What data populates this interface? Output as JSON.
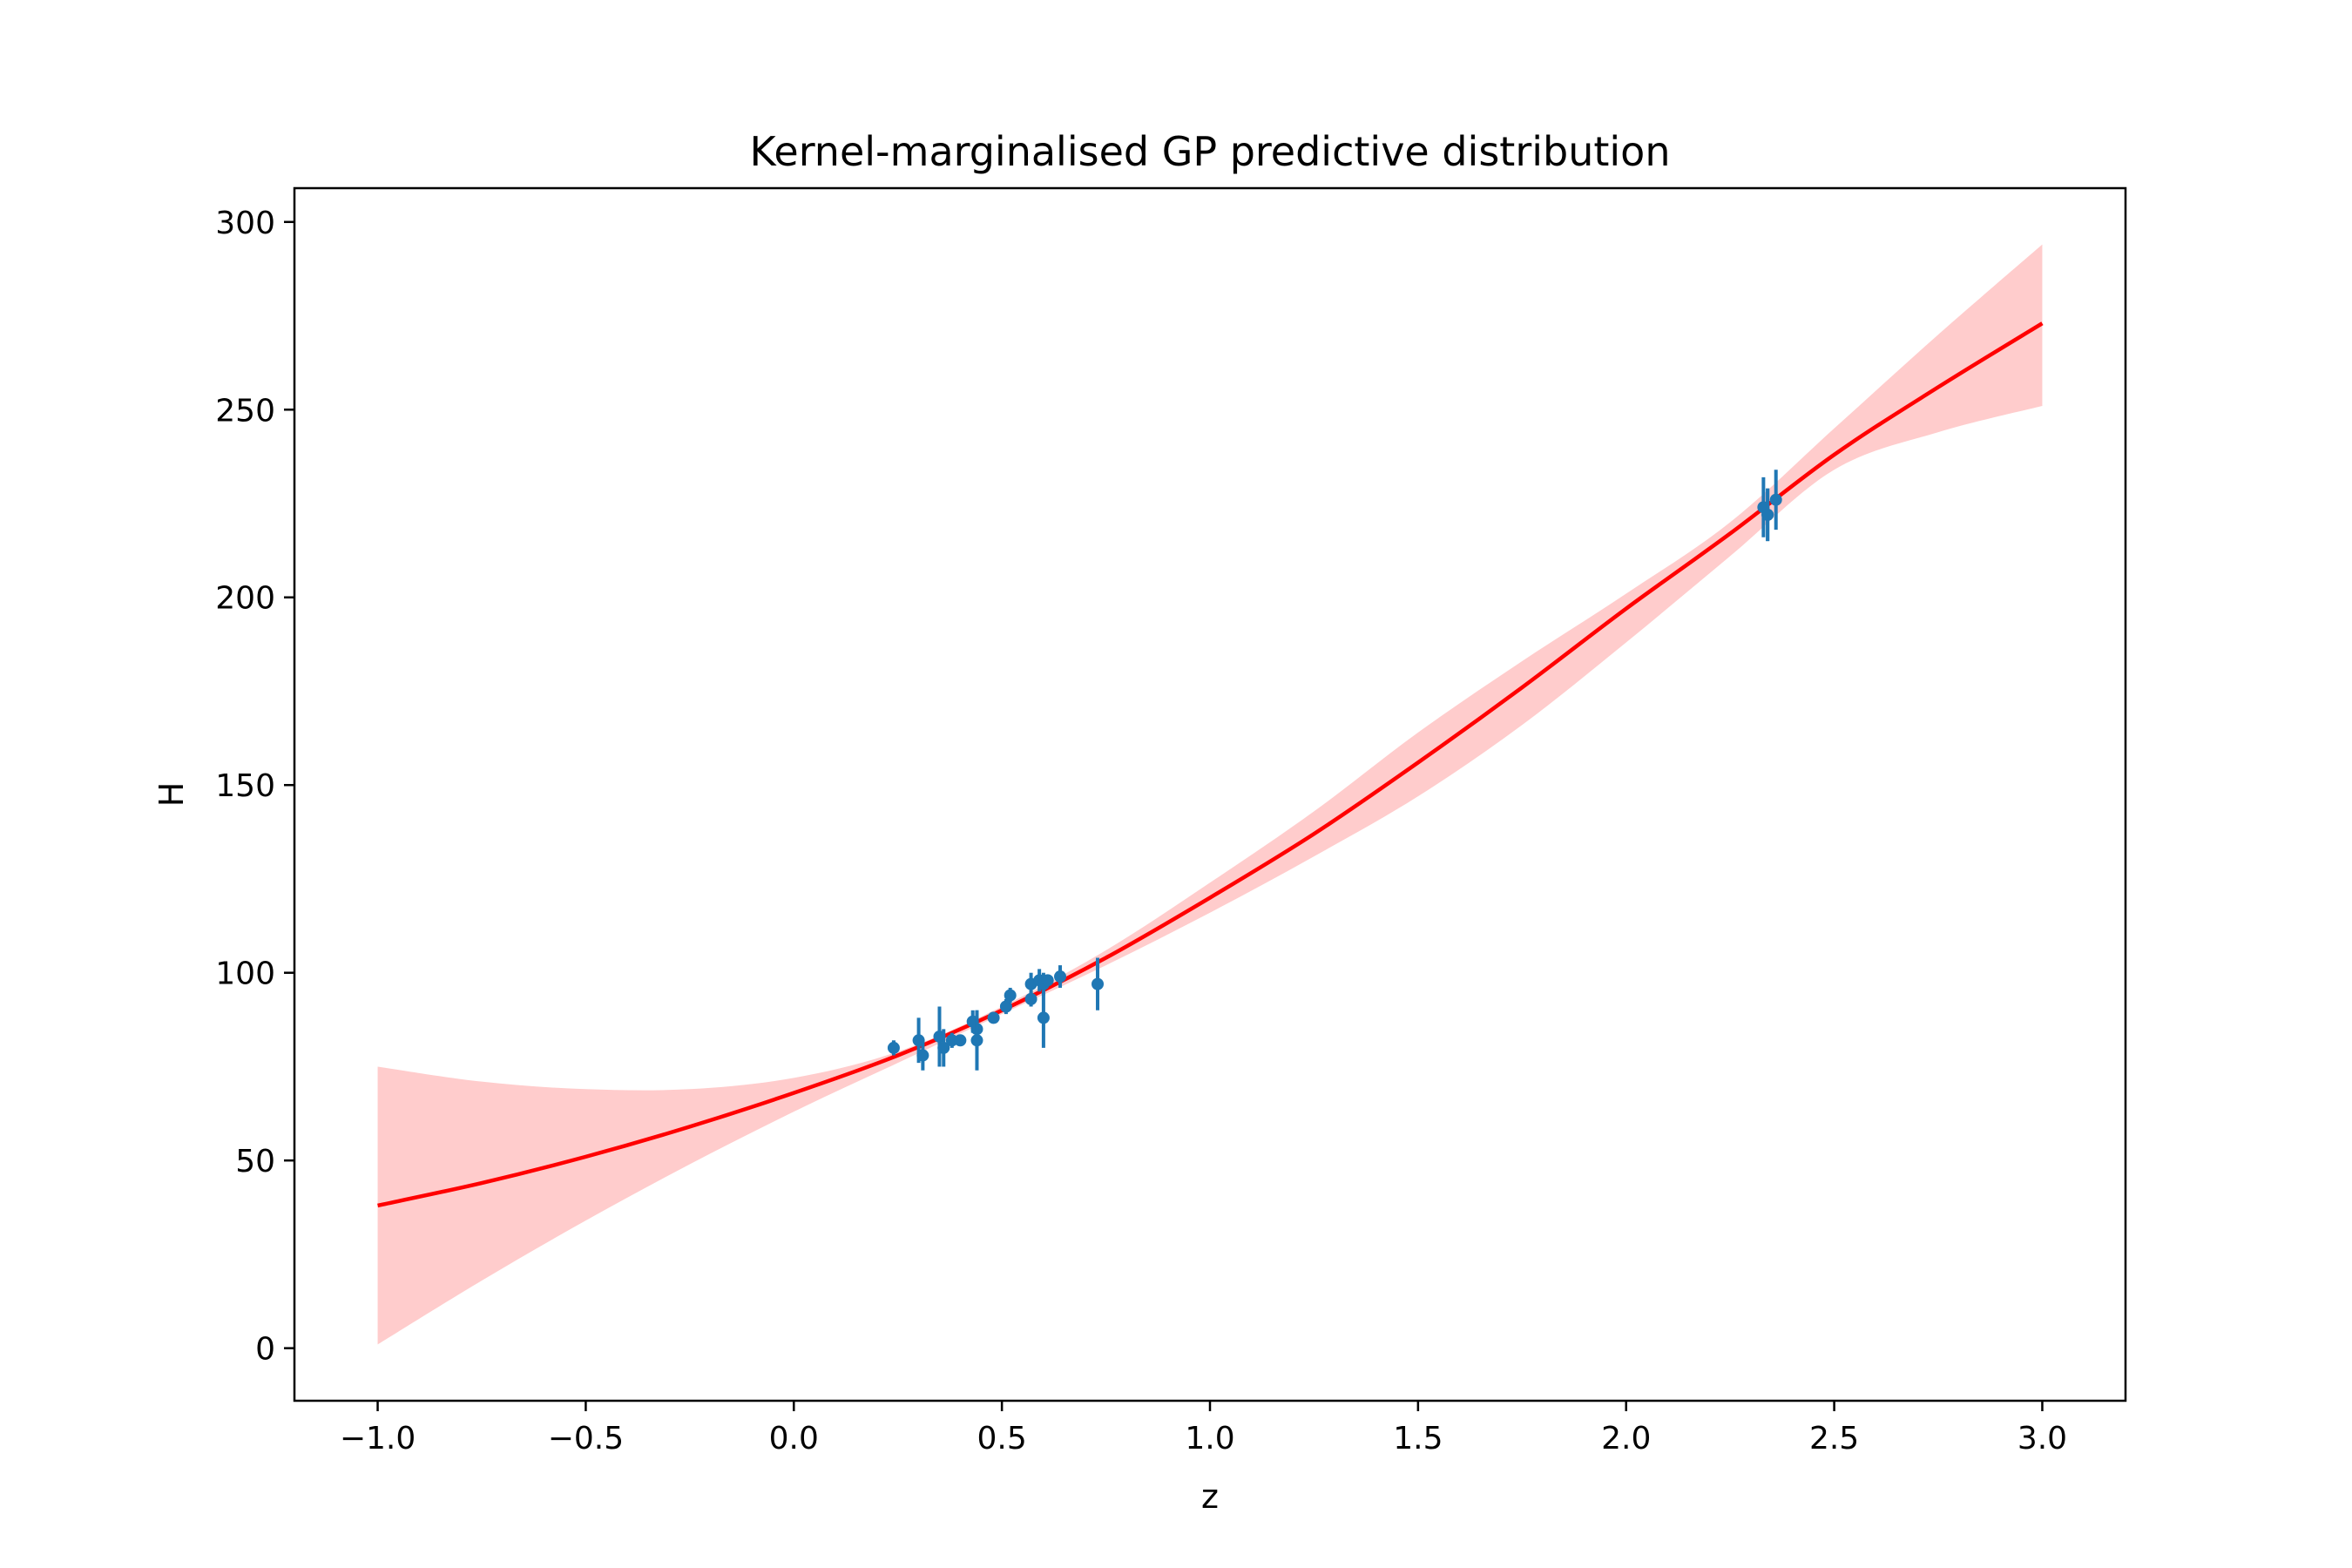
{
  "chart_data": {
    "type": "line",
    "title": "Kernel-marginalised GP predictive distribution",
    "xlabel": "z",
    "ylabel": "H",
    "xlim": [
      -1.2,
      3.2
    ],
    "ylim": [
      -14,
      309
    ],
    "xticks": [
      -1.0,
      -0.5,
      0.0,
      0.5,
      1.0,
      1.5,
      2.0,
      2.5,
      3.0
    ],
    "xtick_labels": [
      "−1.0",
      "−0.5",
      "0.0",
      "0.5",
      "1.0",
      "1.5",
      "2.0",
      "2.5",
      "3.0"
    ],
    "yticks": [
      0,
      50,
      100,
      150,
      200,
      250,
      300
    ],
    "ytick_labels": [
      "0",
      "50",
      "100",
      "150",
      "200",
      "250",
      "300"
    ],
    "grid": false,
    "legend": "none",
    "colors": {
      "mean": "#ff0000",
      "band": "#ffcccc",
      "data": "#1f77b4"
    },
    "series": [
      {
        "kind": "mean-line",
        "x": [
          -1.0,
          -0.75,
          -0.5,
          -0.25,
          0.0,
          0.25,
          0.5,
          0.75,
          1.0,
          1.25,
          1.5,
          1.75,
          2.0,
          2.25,
          2.5,
          2.75,
          3.0
        ],
        "y": [
          38,
          44,
          51,
          59,
          68,
          78,
          90,
          104,
          120,
          137,
          156,
          176,
          197,
          217,
          238,
          256,
          273
        ]
      },
      {
        "kind": "confidence-band",
        "x": [
          -1.0,
          -0.75,
          -0.5,
          -0.25,
          0.0,
          0.25,
          0.5,
          0.75,
          1.0,
          1.25,
          1.5,
          1.75,
          2.0,
          2.25,
          2.5,
          2.75,
          3.0
        ],
        "lower": [
          1,
          18,
          34,
          49,
          63,
          76,
          89,
          102,
          116,
          131,
          147,
          166,
          188,
          211,
          234,
          244,
          251
        ],
        "upper": [
          75,
          71,
          69,
          69,
          72,
          79,
          91,
          106,
          124,
          143,
          164,
          183,
          201,
          220,
          245,
          270,
          294
        ]
      },
      {
        "kind": "errorbar",
        "x": [
          0.24,
          0.3,
          0.31,
          0.35,
          0.36,
          0.38,
          0.4,
          0.43,
          0.44,
          0.44,
          0.48,
          0.51,
          0.52,
          0.57,
          0.57,
          0.59,
          0.6,
          0.6,
          0.61,
          0.64,
          0.73,
          2.33,
          2.34,
          2.34,
          2.36
        ],
        "y": [
          80,
          82,
          78,
          83,
          80,
          82,
          82,
          87,
          85,
          82,
          88,
          91,
          94,
          93,
          97,
          98,
          88,
          97,
          98,
          99,
          97,
          224,
          222,
          222,
          226
        ],
        "err": [
          2,
          6,
          4,
          8,
          5,
          2,
          1,
          3,
          5,
          8,
          1,
          2,
          2,
          2,
          3,
          3,
          8,
          3,
          1,
          3,
          7,
          8,
          7,
          7,
          8
        ]
      }
    ]
  }
}
